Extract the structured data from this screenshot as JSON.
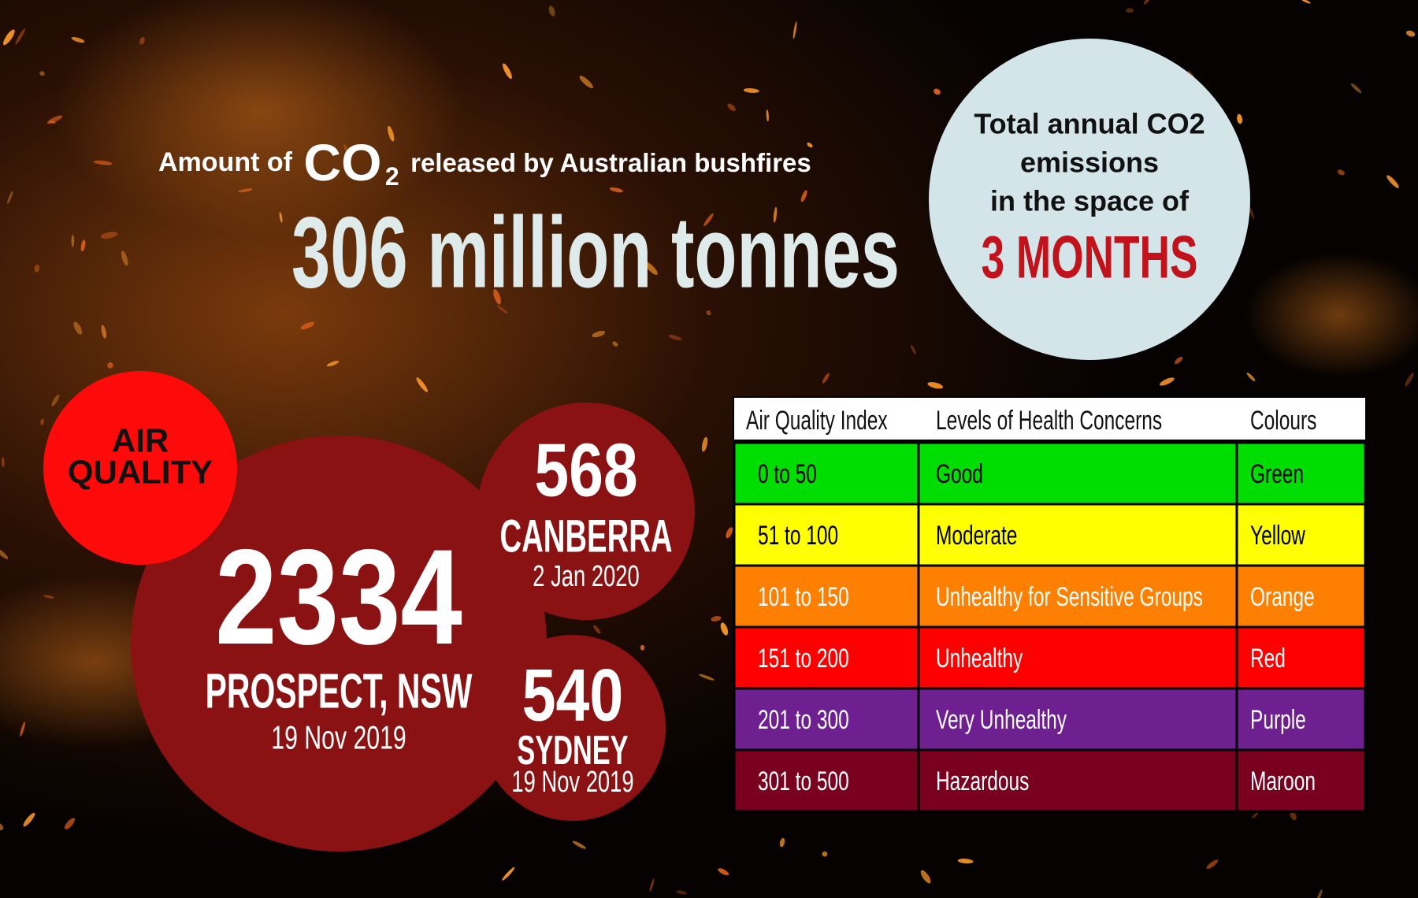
{
  "header": {
    "prefix": "Amount of",
    "chem": "CO",
    "chem_sub": "2",
    "suffix": "released  by Australian bushfires",
    "headline": "306 million tonnes"
  },
  "callout": {
    "lines": [
      "Total annual CO2",
      "emissions",
      "in the space of"
    ],
    "highlight": "3 MONTHS"
  },
  "air_quality": {
    "label_lines": [
      "AIR",
      "QUALITY"
    ],
    "readings": [
      {
        "value": "2334",
        "location": "PROSPECT, NSW",
        "date": "19 Nov 2019"
      },
      {
        "value": "568",
        "location": "CANBERRA",
        "date": "2 Jan 2020"
      },
      {
        "value": "540",
        "location": "SYDNEY",
        "date": "19 Nov 2019"
      }
    ]
  },
  "table": {
    "header": [
      "Air Quality Index",
      "Levels of Health Concerns",
      "Colours"
    ],
    "rows": [
      [
        "0 to 50",
        "Good",
        "Green"
      ],
      [
        "51 to 100",
        "Moderate",
        "Yellow"
      ],
      [
        "101 to 150",
        "Unhealthy for Sensitive Groups",
        "Orange"
      ],
      [
        "151 to 200",
        "Unhealthy",
        "Red"
      ],
      [
        "201 to 300",
        "Very Unhealthy",
        "Purple"
      ],
      [
        "301 to 500",
        "Hazardous",
        "Maroon"
      ]
    ],
    "row_colors": [
      "#00dd00",
      "#ffff00",
      "#ff7f00",
      "#ff0000",
      "#6e2090",
      "#7a0020"
    ],
    "text_colors": [
      "#000000",
      "#000000",
      "#ffffff",
      "#ffffff",
      "#ffffff",
      "#ffffff"
    ]
  }
}
